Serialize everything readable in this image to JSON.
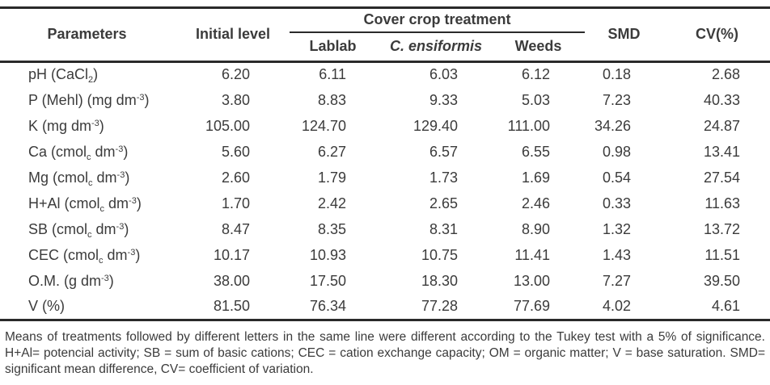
{
  "table": {
    "header": {
      "parameters": "Parameters",
      "initial_level": "Initial level",
      "cover_crop_treatment": "Cover crop treatment",
      "treatments": [
        "Lablab",
        "C. ensiformis",
        "Weeds"
      ],
      "smd": "SMD",
      "cv": "CV(%)"
    },
    "rows": [
      {
        "parameter": "pH (CaCl_{2})",
        "values": [
          "6.20",
          "6.11",
          "6.03",
          "6.12",
          "0.18",
          "2.68"
        ]
      },
      {
        "parameter": "P (Mehl) (mg dm^{-3})",
        "values": [
          "3.80",
          "8.83",
          "9.33",
          "5.03",
          "7.23",
          "40.33"
        ]
      },
      {
        "parameter": "K (mg dm^{-3})",
        "values": [
          "105.00",
          "124.70",
          "129.40",
          "111.00",
          "34.26",
          "24.87"
        ]
      },
      {
        "parameter": "Ca (cmol_{c} dm^{-3})",
        "values": [
          "5.60",
          "6.27",
          "6.57",
          "6.55",
          "0.98",
          "13.41"
        ]
      },
      {
        "parameter": "Mg (cmol_{c} dm^{-3})",
        "values": [
          "2.60",
          "1.79",
          "1.73",
          "1.69",
          "0.54",
          "27.54"
        ]
      },
      {
        "parameter": "H+Al (cmol_{c} dm^{-3})",
        "values": [
          "1.70",
          "2.42",
          "2.65",
          "2.46",
          "0.33",
          "11.63"
        ]
      },
      {
        "parameter": "SB (cmol_{c} dm^{-3})",
        "values": [
          "8.47",
          "8.35",
          "8.31",
          "8.90",
          "1.32",
          "13.72"
        ]
      },
      {
        "parameter": "CEC (cmol_{c} dm^{-3})",
        "values": [
          "10.17",
          "10.93",
          "10.75",
          "11.41",
          "1.43",
          "11.51"
        ]
      },
      {
        "parameter": "O.M. (g dm^{-3})",
        "values": [
          "38.00",
          "17.50",
          "18.30",
          "13.00",
          "7.27",
          "39.50"
        ]
      },
      {
        "parameter": "V (%)",
        "values": [
          "81.50",
          "76.34",
          "77.28",
          "77.69",
          "4.02",
          "4.61"
        ]
      }
    ]
  },
  "footnote": "Means of treatments followed by different letters in the same line were different according to the Tukey test with a 5% of significance. H+Al= potencial activity; SB = sum of basic cations; CEC = cation exchange capacity; OM = organic matter; V = base saturation. SMD= significant mean difference, CV= coefficient of variation.",
  "colors": {
    "rule": "#2a2a2a",
    "text": "#3b3b3b",
    "background": "#ffffff"
  }
}
